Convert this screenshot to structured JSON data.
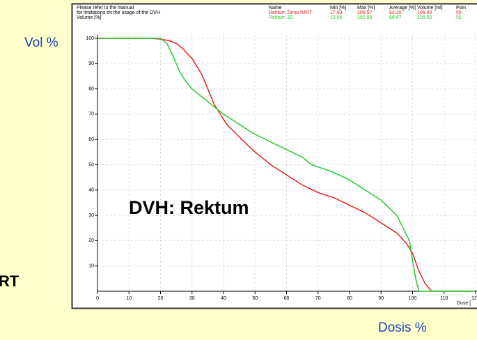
{
  "slide": {
    "y_label": "Vol  %",
    "x_label": "Dosis %",
    "left_fragment": "RT"
  },
  "chart_data": {
    "type": "line",
    "title": "DVH: Rektum",
    "notes": [
      "Please refer to the manual",
      "for limitations on the usage of the DVH",
      "Volume [%]"
    ],
    "x_axis_label": "Dose [",
    "table_headers": [
      "Name",
      "Min [%]",
      "Max [%]",
      "Average [%]",
      "Volume [ml]",
      "Poin"
    ],
    "series": [
      {
        "name": "Rektum Tomo IMRT",
        "color": "#e8201c",
        "stats": [
          "17.93",
          "105.57",
          "62.20",
          "106.30",
          "55"
        ],
        "x": [
          0,
          17,
          20,
          23,
          25,
          27,
          30,
          33,
          35,
          37,
          39,
          41,
          45,
          50,
          55,
          60,
          65,
          70,
          75,
          80,
          85,
          90,
          95,
          98,
          100,
          102,
          104,
          106,
          120
        ],
        "values": [
          100,
          100,
          99.7,
          99,
          98,
          96,
          92,
          86,
          80,
          74,
          70,
          66,
          61,
          55,
          50,
          46,
          42,
          39,
          37,
          34,
          31,
          27,
          23,
          19,
          15,
          8,
          3,
          0,
          0
        ]
      },
      {
        "name": "Rektum 3D",
        "color": "#22cc33",
        "stats": [
          "15.96",
          "102.80",
          "66.67",
          "106.30",
          "55"
        ],
        "x": [
          0,
          20,
          22,
          24,
          26,
          28,
          30,
          33,
          36,
          40,
          45,
          50,
          55,
          60,
          65,
          68,
          75,
          80,
          85,
          90,
          95,
          97,
          99,
          100,
          101,
          102,
          120
        ],
        "values": [
          100,
          100,
          98,
          93,
          87,
          83,
          80,
          77,
          74,
          70,
          66,
          62,
          59,
          56,
          53,
          50,
          47,
          44,
          40,
          36,
          30,
          25,
          20,
          12,
          5,
          0,
          0
        ]
      }
    ],
    "xlim": [
      0,
      120
    ],
    "ylim": [
      0,
      100
    ],
    "xticks": [
      0,
      10,
      20,
      30,
      40,
      50,
      60,
      70,
      80,
      90,
      100,
      110,
      120
    ],
    "yticks": [
      10,
      20,
      30,
      40,
      50,
      60,
      70,
      80,
      90,
      100
    ],
    "grid": true
  }
}
